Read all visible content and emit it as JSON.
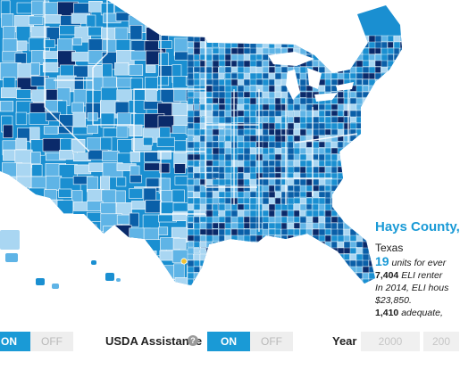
{
  "map": {
    "colors": {
      "lightest": "#a9d6f2",
      "light": "#5fb4e6",
      "medium": "#1a8fd1",
      "dark": "#0a5fa8",
      "darkest": "#0a2a6a",
      "background": "#ffffff",
      "border": "#ffffff",
      "marker": "#f2c230"
    },
    "selected_marker_icon": "selected-county-marker"
  },
  "info": {
    "county": "Hays County,",
    "state": "Texas",
    "units_value": "19",
    "units_text": " units for ever",
    "renter_value": "7,404",
    "renter_text": " ELI renter",
    "line3": "In 2014, ELI hous",
    "line4": "$23,850.",
    "adequate_value": "1,410",
    "adequate_text": " adequate,"
  },
  "controls": {
    "toggle1": {
      "on": "ON",
      "off": "OFF"
    },
    "usda": {
      "label": "USDA Assistance",
      "help": "?",
      "on": "ON",
      "off": "OFF"
    },
    "year": {
      "label": "Year",
      "options": [
        "2000",
        "200"
      ]
    }
  }
}
